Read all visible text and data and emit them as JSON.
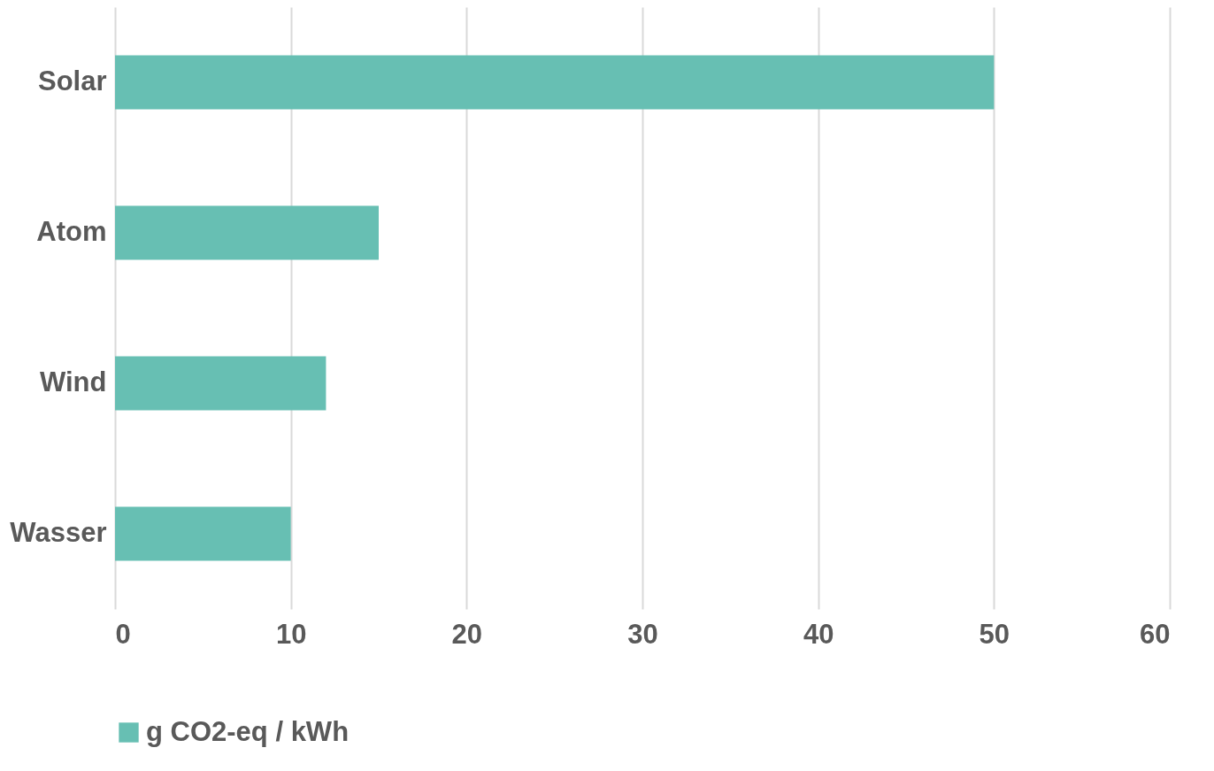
{
  "chart_data": {
    "type": "bar",
    "orientation": "horizontal",
    "categories": [
      "Solar",
      "Atom",
      "Wind",
      "Wasser"
    ],
    "series": [
      {
        "name": "g CO2-eq / kWh",
        "color": "#67bfb3",
        "values": [
          50,
          15,
          12,
          10
        ]
      }
    ],
    "xlim": [
      0,
      60
    ],
    "xticks": [
      0,
      10,
      20,
      30,
      40,
      50,
      60
    ],
    "grid": "x",
    "legend": "bottom"
  }
}
